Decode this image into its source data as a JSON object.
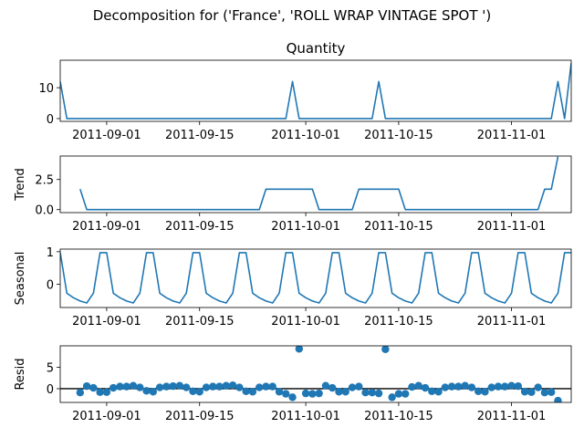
{
  "title": "Decomposition for ('France', 'ROLL WRAP VINTAGE SPOT ')",
  "chart_data": {
    "type": "line",
    "x_start": "2011-08-25",
    "x_end": "2011-11-10",
    "x_tick_labels": [
      "2011-09-01",
      "2011-09-15",
      "2011-10-01",
      "2011-10-15",
      "2011-11-01"
    ],
    "x_tick_dates": [
      "2011-09-01",
      "2011-09-15",
      "2011-10-01",
      "2011-10-15",
      "2011-11-01"
    ],
    "panels": [
      {
        "name": "quantity",
        "title": "Quantity",
        "ylabel": "",
        "kind": "line",
        "color": "#1f77b4",
        "ylim": [
          -0.9,
          18.9
        ],
        "yticks": [
          0,
          10
        ],
        "points": [
          [
            "2011-08-25",
            12
          ],
          [
            "2011-08-26",
            0
          ],
          [
            "2011-09-28",
            0
          ],
          [
            "2011-09-29",
            12
          ],
          [
            "2011-09-30",
            0
          ],
          [
            "2011-10-11",
            0
          ],
          [
            "2011-10-12",
            12
          ],
          [
            "2011-10-13",
            0
          ],
          [
            "2011-11-07",
            0
          ],
          [
            "2011-11-08",
            12
          ],
          [
            "2011-11-09",
            0
          ],
          [
            "2011-11-10",
            18
          ]
        ]
      },
      {
        "name": "trend",
        "title": "",
        "ylabel": "Trend",
        "kind": "line",
        "color": "#1f77b4",
        "ylim": [
          -0.25,
          4.45
        ],
        "yticks": [
          0.0,
          2.5
        ],
        "ytick_labels": [
          "0.0",
          "2.5"
        ],
        "points": [
          [
            "2011-08-28",
            1.7
          ],
          [
            "2011-08-29",
            0
          ],
          [
            "2011-09-24",
            0
          ],
          [
            "2011-09-25",
            1.7
          ],
          [
            "2011-10-02",
            1.7
          ],
          [
            "2011-10-03",
            0
          ],
          [
            "2011-10-08",
            0
          ],
          [
            "2011-10-09",
            1.7
          ],
          [
            "2011-10-15",
            1.7
          ],
          [
            "2011-10-16",
            0
          ],
          [
            "2011-11-05",
            0
          ],
          [
            "2011-11-06",
            1.7
          ],
          [
            "2011-11-07",
            1.7
          ],
          [
            "2011-11-08",
            4.4
          ]
        ]
      },
      {
        "name": "seasonal",
        "title": "",
        "ylabel": "Seasonal",
        "kind": "line",
        "color": "#1f77b4",
        "ylim": [
          -0.72,
          1.08
        ],
        "yticks": [
          0,
          1
        ],
        "pattern": [
          0.97,
          -0.28,
          -0.42,
          -0.52,
          -0.58,
          -0.28,
          0.97
        ],
        "points_start": "2011-08-25",
        "points_end": "2011-11-10"
      },
      {
        "name": "resid",
        "title": "",
        "ylabel": "Resid",
        "kind": "scatter",
        "color": "#1f77b4",
        "baseline": 0,
        "ylim": [
          -3.2,
          10.0
        ],
        "yticks": [
          0,
          5
        ],
        "points_start": "2011-08-28",
        "values": [
          -0.9,
          0.6,
          0.2,
          -0.8,
          -0.8,
          0.2,
          0.5,
          0.5,
          0.7,
          0.3,
          -0.5,
          -0.7,
          0.3,
          0.5,
          0.6,
          0.7,
          0.3,
          -0.6,
          -0.7,
          0.3,
          0.5,
          0.5,
          0.7,
          0.8,
          0.3,
          -0.6,
          -0.7,
          0.3,
          0.5,
          0.5,
          -0.7,
          -1.2,
          -2.0,
          9.3,
          -1.1,
          -1.2,
          -1.1,
          0.7,
          0.2,
          -0.7,
          -0.7,
          0.3,
          0.5,
          -0.9,
          -0.9,
          -1.1,
          9.2,
          -2.0,
          -1.2,
          -1.2,
          0.4,
          0.7,
          0.2,
          -0.6,
          -0.7,
          0.3,
          0.5,
          0.5,
          0.7,
          0.3,
          -0.6,
          -0.7,
          0.3,
          0.5,
          0.5,
          0.7,
          0.6,
          -0.7,
          -0.8,
          0.3,
          -0.9,
          -0.8,
          -2.8
        ]
      }
    ]
  }
}
